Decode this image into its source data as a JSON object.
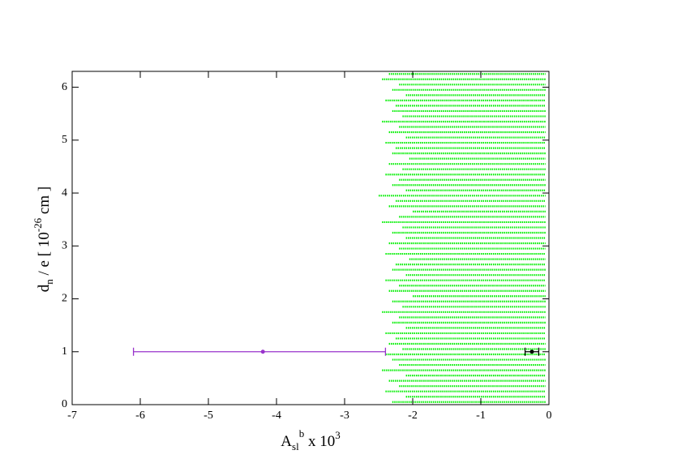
{
  "chart_data": {
    "type": "scatter",
    "xlabel": {
      "parts": [
        "A",
        "sl",
        "b",
        " x 10",
        "3"
      ]
    },
    "ylabel": {
      "parts": [
        "d",
        "n",
        " / e [ 10",
        "-26",
        " cm ]"
      ]
    },
    "xlim": [
      -7,
      0
    ],
    "ylim": [
      0,
      6.3
    ],
    "xticks": [
      -7,
      -6,
      -5,
      -4,
      -3,
      -2,
      -1,
      0
    ],
    "yticks": [
      0,
      1,
      2,
      3,
      4,
      5,
      6
    ],
    "scan": {
      "color": "#00ee00",
      "x_max": -0.05,
      "y": [
        0.05,
        0.15,
        0.25,
        0.35,
        0.45,
        0.55,
        0.65,
        0.75,
        0.85,
        0.95,
        1.05,
        1.15,
        1.25,
        1.35,
        1.45,
        1.55,
        1.65,
        1.75,
        1.85,
        1.95,
        2.05,
        2.15,
        2.25,
        2.35,
        2.45,
        2.55,
        2.65,
        2.75,
        2.85,
        2.95,
        3.05,
        3.15,
        3.25,
        3.35,
        3.45,
        3.55,
        3.65,
        3.75,
        3.85,
        3.95,
        4.05,
        4.15,
        4.25,
        4.35,
        4.45,
        4.55,
        4.65,
        4.75,
        4.85,
        4.95,
        5.05,
        5.15,
        5.25,
        5.35,
        5.45,
        5.55,
        5.65,
        5.75,
        5.85,
        5.95,
        6.05,
        6.15,
        6.25
      ],
      "x_min": [
        -2.3,
        -2.1,
        -2.4,
        -2.2,
        -2.35,
        -2.1,
        -2.45,
        -2.2,
        -2.3,
        -2.4,
        -2.15,
        -2.35,
        -2.25,
        -2.4,
        -2.1,
        -2.3,
        -2.2,
        -2.45,
        -2.15,
        -2.3,
        -2.0,
        -2.35,
        -2.2,
        -2.4,
        -2.1,
        -2.3,
        -2.25,
        -2.05,
        -2.4,
        -2.2,
        -2.35,
        -2.1,
        -2.3,
        -2.15,
        -2.45,
        -2.2,
        -2.0,
        -2.35,
        -2.25,
        -2.5,
        -2.1,
        -2.3,
        -2.2,
        -2.4,
        -2.15,
        -2.35,
        -2.05,
        -2.3,
        -2.25,
        -2.4,
        -2.1,
        -2.35,
        -2.2,
        -2.45,
        -2.15,
        -2.3,
        -2.25,
        -2.4,
        -2.1,
        -2.3,
        -2.2,
        -2.45,
        -2.35
      ]
    },
    "points": [
      {
        "color": "#9933cc",
        "x": -4.2,
        "y": 1,
        "x_low": -6.1,
        "x_high": -2.4
      },
      {
        "color": "#000000",
        "x": -0.25,
        "y": 1,
        "x_low": -0.35,
        "x_high": -0.15
      }
    ]
  }
}
